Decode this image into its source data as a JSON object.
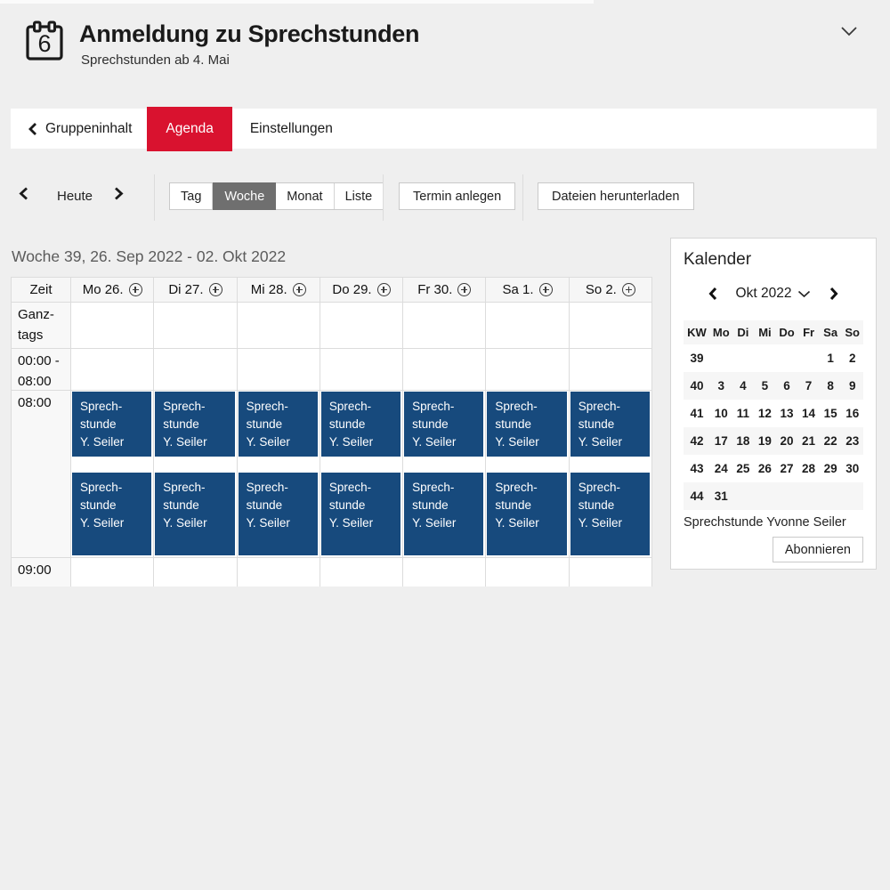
{
  "colors": {
    "accent_red": "#d9122f",
    "event_blue": "#174a7d",
    "selected_gray": "#6f6f6f",
    "page_bg": "#efefef"
  },
  "header": {
    "icon": "calendar-icon",
    "icon_day": "6",
    "title": "Anmeldung zu Sprechstunden",
    "subtitle": "Sprechstunden ab 4. Mai",
    "collapse_icon": "chevron-down-icon"
  },
  "tabbar": {
    "back": {
      "icon": "chevron-left-icon",
      "label": "Gruppeninhalt"
    },
    "tabs": [
      {
        "label": "Agenda",
        "active": true
      },
      {
        "label": "Einstellungen",
        "active": false
      }
    ]
  },
  "toolbar": {
    "prev_icon": "chevron-left-icon",
    "today_label": "Heute",
    "next_icon": "chevron-right-icon",
    "view_options": [
      "Tag",
      "Woche",
      "Monat",
      "Liste"
    ],
    "selected_view": "Woche",
    "create_button": "Termin anlegen",
    "download_button": "Dateien herunterladen"
  },
  "agenda": {
    "week_title": "Woche 39, 26. Sep 2022 - 02. Okt 2022",
    "time_column_header": "Zeit",
    "day_headers": [
      "Mo 26.",
      "Di 27.",
      "Mi 28.",
      "Do 29.",
      "Fr 30.",
      "Sa 1.",
      "So 2."
    ],
    "add_icon": "plus-circle-icon",
    "row_labels": {
      "allday": "Ganz-tags",
      "early": "00:00 - 08:00",
      "morning": "08:00",
      "next": "09:00"
    },
    "event_lines": [
      "Sprech-",
      "stunde",
      "Y. Seiler"
    ],
    "events_per_day": 2
  },
  "sidebar": {
    "title": "Kalender",
    "prev_icon": "chevron-left-icon",
    "month_label": "Okt 2022",
    "dropdown_icon": "chevron-down-icon",
    "next_icon": "chevron-right-icon",
    "weekday_header": [
      "KW",
      "Mo",
      "Di",
      "Mi",
      "Do",
      "Fr",
      "Sa",
      "So"
    ],
    "weeks": [
      {
        "kw": "39",
        "days": [
          "",
          "",
          "",
          "",
          "",
          "1",
          "2"
        ]
      },
      {
        "kw": "40",
        "days": [
          "3",
          "4",
          "5",
          "6",
          "7",
          "8",
          "9"
        ]
      },
      {
        "kw": "41",
        "days": [
          "10",
          "11",
          "12",
          "13",
          "14",
          "15",
          "16"
        ]
      },
      {
        "kw": "42",
        "days": [
          "17",
          "18",
          "19",
          "20",
          "21",
          "22",
          "23"
        ]
      },
      {
        "kw": "43",
        "days": [
          "24",
          "25",
          "26",
          "27",
          "28",
          "29",
          "30"
        ]
      },
      {
        "kw": "44",
        "days": [
          "31",
          "",
          "",
          "",
          "",
          "",
          ""
        ]
      }
    ],
    "legend": "Sprechstunde Yvonne Seiler",
    "subscribe_button": "Abonnieren"
  }
}
